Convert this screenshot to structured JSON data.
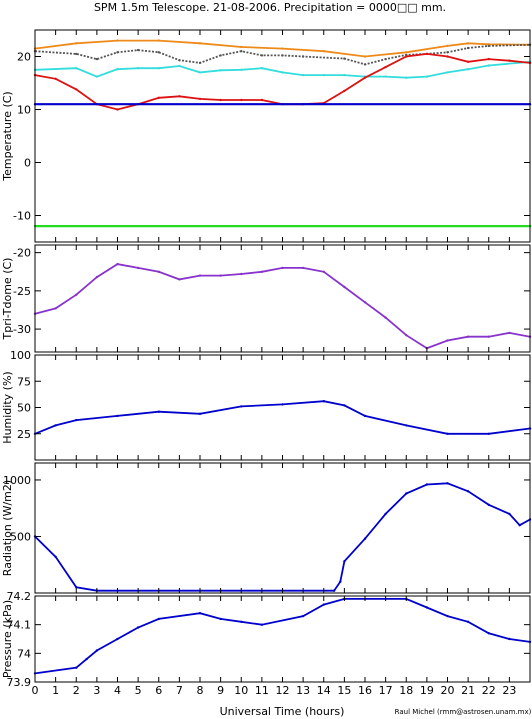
{
  "title": "SPM 1.5m Telescope. 21-08-2006. Precipitation = 0000□□ mm.",
  "credit": "Raul Michel (rmm@astrosen.unam.mx)",
  "xlabel": "Universal Time (hours)",
  "colors": {
    "axes": "#000000",
    "orange": "#ee8a1a",
    "gray": "#555555",
    "cyan": "#33dddd",
    "red": "#dd1111",
    "blue": "#0000cc",
    "green": "#22dd22",
    "purple": "#8833cc",
    "navy": "#1122cc"
  },
  "chart_data": [
    {
      "type": "scatter",
      "ylabel": "Temperature (C)",
      "xlim": [
        0,
        24
      ],
      "ylim": [
        -15,
        25
      ],
      "xticks": [
        0,
        1,
        2,
        3,
        4,
        5,
        6,
        7,
        8,
        9,
        10,
        11,
        12,
        13,
        14,
        15,
        16,
        17,
        18,
        19,
        20,
        21,
        22,
        23
      ],
      "yticks": [
        -10,
        0,
        10,
        20
      ],
      "series": [
        {
          "color": "orange",
          "points": [
            [
              0,
              21.5
            ],
            [
              2,
              22.5
            ],
            [
              4,
              23
            ],
            [
              6,
              23
            ],
            [
              8,
              22.5
            ],
            [
              10,
              21.8
            ],
            [
              12,
              21.5
            ],
            [
              14,
              21
            ],
            [
              16,
              20
            ],
            [
              18,
              20.8
            ],
            [
              20,
              22
            ],
            [
              21,
              22.5
            ],
            [
              22,
              22.3
            ],
            [
              24,
              22.2
            ]
          ]
        },
        {
          "color": "gray",
          "points": [
            [
              0,
              21
            ],
            [
              2,
              20.5
            ],
            [
              3,
              19.5
            ],
            [
              4,
              20.8
            ],
            [
              5,
              21.2
            ],
            [
              6,
              20.8
            ],
            [
              7,
              19.3
            ],
            [
              8,
              18.8
            ],
            [
              9,
              20.2
            ],
            [
              10,
              21
            ],
            [
              11,
              20.2
            ],
            [
              12,
              20.2
            ],
            [
              13,
              20
            ],
            [
              15,
              19.6
            ],
            [
              16,
              18.5
            ],
            [
              17,
              19.5
            ],
            [
              18,
              20.3
            ],
            [
              19,
              20.5
            ],
            [
              20,
              20.8
            ],
            [
              21,
              21.6
            ],
            [
              22,
              22
            ],
            [
              24,
              22.2
            ]
          ]
        },
        {
          "color": "cyan",
          "points": [
            [
              0,
              17.5
            ],
            [
              2,
              17.8
            ],
            [
              3,
              16.2
            ],
            [
              4,
              17.6
            ],
            [
              5,
              17.8
            ],
            [
              6,
              17.8
            ],
            [
              7,
              18.2
            ],
            [
              8,
              17
            ],
            [
              9,
              17.4
            ],
            [
              10,
              17.5
            ],
            [
              11,
              17.8
            ],
            [
              12,
              17
            ],
            [
              13,
              16.5
            ],
            [
              14,
              16.5
            ],
            [
              15,
              16.5
            ],
            [
              16,
              16.2
            ],
            [
              17,
              16.2
            ],
            [
              18,
              16
            ],
            [
              19,
              16.2
            ],
            [
              20,
              17
            ],
            [
              21,
              17.6
            ],
            [
              22,
              18.3
            ],
            [
              24,
              19
            ]
          ]
        },
        {
          "color": "red",
          "points": [
            [
              0,
              16.5
            ],
            [
              1,
              15.8
            ],
            [
              2,
              13.8
            ],
            [
              3,
              11
            ],
            [
              4,
              10
            ],
            [
              5,
              11
            ],
            [
              6,
              12.2
            ],
            [
              7,
              12.5
            ],
            [
              8,
              12
            ],
            [
              9,
              11.8
            ],
            [
              10,
              11.8
            ],
            [
              11,
              11.8
            ],
            [
              12,
              11
            ],
            [
              13,
              11
            ],
            [
              14,
              11.2
            ],
            [
              15,
              13.5
            ],
            [
              16,
              16
            ],
            [
              17,
              18
            ],
            [
              18,
              20
            ],
            [
              19,
              20.5
            ],
            [
              20,
              20
            ],
            [
              21,
              19
            ],
            [
              22,
              19.5
            ],
            [
              23,
              19.2
            ],
            [
              24,
              18.8
            ]
          ]
        },
        {
          "color": "blue",
          "points": [
            [
              0,
              11
            ],
            [
              24,
              11
            ]
          ]
        },
        {
          "color": "green",
          "points": [
            [
              0,
              -12
            ],
            [
              24,
              -12
            ]
          ]
        }
      ]
    },
    {
      "type": "scatter",
      "ylabel": "Tpri-Tdome (C)",
      "xlim": [
        0,
        24
      ],
      "ylim": [
        -33,
        -19
      ],
      "xticks": [
        0,
        1,
        2,
        3,
        4,
        5,
        6,
        7,
        8,
        9,
        10,
        11,
        12,
        13,
        14,
        15,
        16,
        17,
        18,
        19,
        20,
        21,
        22,
        23
      ],
      "yticks": [
        -30,
        -25,
        -20
      ],
      "series": [
        {
          "color": "purple",
          "points": [
            [
              0,
              -28
            ],
            [
              1,
              -27.3
            ],
            [
              2,
              -25.5
            ],
            [
              3,
              -23.2
            ],
            [
              4,
              -21.5
            ],
            [
              5,
              -22
            ],
            [
              6,
              -22.5
            ],
            [
              7,
              -23.5
            ],
            [
              8,
              -23
            ],
            [
              9,
              -23
            ],
            [
              10,
              -22.8
            ],
            [
              11,
              -22.5
            ],
            [
              12,
              -22
            ],
            [
              13,
              -22
            ],
            [
              14,
              -22.5
            ],
            [
              15,
              -24.5
            ],
            [
              16,
              -26.5
            ],
            [
              17,
              -28.5
            ],
            [
              18,
              -30.8
            ],
            [
              19,
              -32.5
            ],
            [
              20,
              -31.5
            ],
            [
              21,
              -31
            ],
            [
              22,
              -31
            ],
            [
              23,
              -30.5
            ],
            [
              24,
              -31
            ]
          ]
        }
      ]
    },
    {
      "type": "scatter",
      "ylabel": "Humidity (%)",
      "xlim": [
        0,
        24
      ],
      "ylim": [
        0,
        100
      ],
      "xticks": [
        0,
        1,
        2,
        3,
        4,
        5,
        6,
        7,
        8,
        9,
        10,
        11,
        12,
        13,
        14,
        15,
        16,
        17,
        18,
        19,
        20,
        21,
        22,
        23
      ],
      "yticks": [
        25,
        50,
        75,
        100
      ],
      "series": [
        {
          "color": "blue",
          "points": [
            [
              0,
              25
            ],
            [
              1,
              33
            ],
            [
              2,
              38
            ],
            [
              4,
              42
            ],
            [
              6,
              46
            ],
            [
              8,
              44
            ],
            [
              10,
              51
            ],
            [
              12,
              53
            ],
            [
              14,
              56
            ],
            [
              15,
              52
            ],
            [
              16,
              42
            ],
            [
              18,
              33
            ],
            [
              20,
              25
            ],
            [
              22,
              25
            ],
            [
              24,
              30
            ]
          ]
        }
      ]
    },
    {
      "type": "scatter",
      "ylabel": "Radiation (W/m2)",
      "xlim": [
        0,
        24
      ],
      "ylim": [
        0,
        1150
      ],
      "xticks": [
        0,
        1,
        2,
        3,
        4,
        5,
        6,
        7,
        8,
        9,
        10,
        11,
        12,
        13,
        14,
        15,
        16,
        17,
        18,
        19,
        20,
        21,
        22,
        23
      ],
      "yticks": [
        500,
        1000
      ],
      "series": [
        {
          "color": "blue",
          "points": [
            [
              0,
              500
            ],
            [
              1,
              320
            ],
            [
              2,
              50
            ],
            [
              3,
              20
            ],
            [
              14.5,
              20
            ],
            [
              14.8,
              100
            ],
            [
              15,
              280
            ],
            [
              16,
              480
            ],
            [
              17,
              700
            ],
            [
              18,
              880
            ],
            [
              19,
              960
            ],
            [
              20,
              970
            ],
            [
              21,
              900
            ],
            [
              22,
              780
            ],
            [
              23,
              700
            ],
            [
              23.5,
              600
            ],
            [
              24,
              650
            ]
          ]
        }
      ]
    },
    {
      "type": "scatter",
      "ylabel": "Pressure (kPa)",
      "xlim": [
        0,
        24
      ],
      "ylim": [
        73.9,
        74.2
      ],
      "xticks": [
        0,
        1,
        2,
        3,
        4,
        5,
        6,
        7,
        8,
        9,
        10,
        11,
        12,
        13,
        14,
        15,
        16,
        17,
        18,
        19,
        20,
        21,
        22,
        23
      ],
      "yticks": [
        73.9,
        74,
        74.1,
        74.2
      ],
      "series": [
        {
          "color": "blue",
          "points": [
            [
              0,
              73.93
            ],
            [
              2,
              73.95
            ],
            [
              2.5,
              73.98
            ],
            [
              3,
              74.01
            ],
            [
              4,
              74.05
            ],
            [
              5,
              74.09
            ],
            [
              6,
              74.12
            ],
            [
              8,
              74.14
            ],
            [
              9,
              74.12
            ],
            [
              10,
              74.11
            ],
            [
              11,
              74.1
            ],
            [
              13,
              74.13
            ],
            [
              14,
              74.17
            ],
            [
              15,
              74.19
            ],
            [
              18,
              74.19
            ],
            [
              19,
              74.16
            ],
            [
              20,
              74.13
            ],
            [
              21,
              74.11
            ],
            [
              22,
              74.07
            ],
            [
              23,
              74.05
            ],
            [
              24,
              74.04
            ]
          ]
        }
      ]
    }
  ]
}
